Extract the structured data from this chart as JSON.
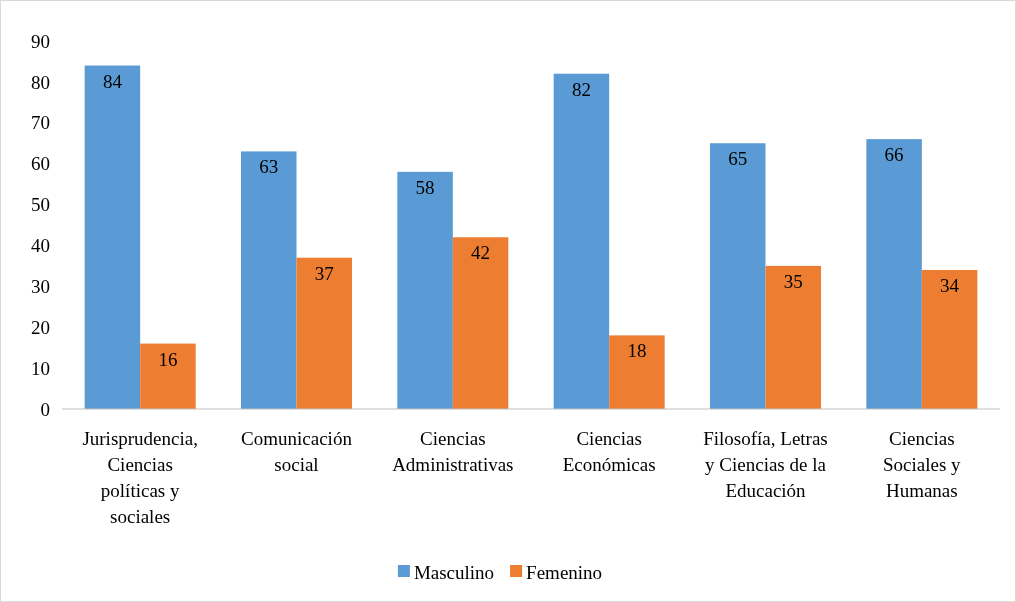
{
  "chart_data": {
    "type": "bar",
    "categories": [
      "Jurisprudencia, Ciencias políticas y sociales",
      "Comunicación social",
      "Ciencias Administrativas",
      "Ciencias Económicas",
      "Filosofía, Letras y Ciencias de la Educación",
      "Ciencias Sociales y Humanas"
    ],
    "series": [
      {
        "name": "Masculino",
        "color": "#5b9bd5",
        "values": [
          84,
          63,
          58,
          82,
          65,
          66
        ]
      },
      {
        "name": "Femenino",
        "color": "#ed7d31",
        "values": [
          16,
          37,
          42,
          18,
          35,
          34
        ]
      }
    ],
    "ylim": [
      0,
      90
    ],
    "yticks": [
      0,
      10,
      20,
      30,
      40,
      50,
      60,
      70,
      80,
      90
    ],
    "data_labels": true,
    "legend": "bottom"
  }
}
